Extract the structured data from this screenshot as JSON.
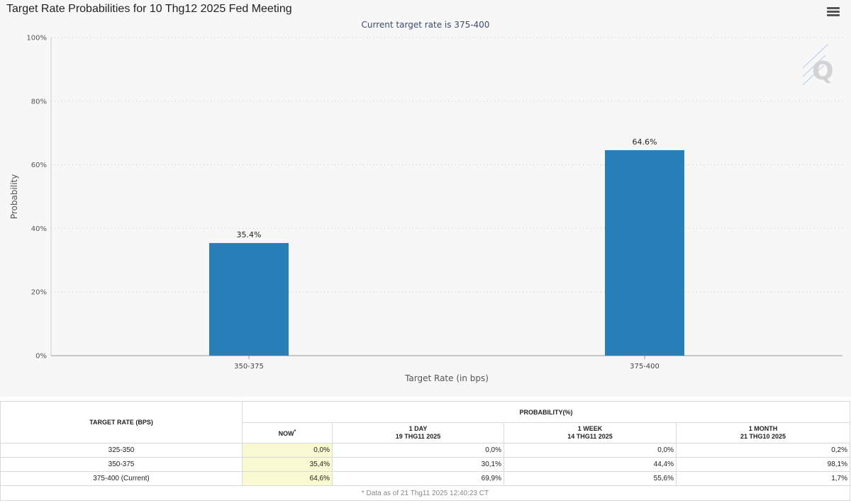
{
  "header": {
    "title": "Target Rate Probabilities for 10 Thg12 2025 Fed Meeting",
    "subtitle": "Current target rate is 375-400"
  },
  "chart_data": {
    "type": "bar",
    "title": "Target Rate Probabilities for 10 Thg12 2025 Fed Meeting",
    "subtitle": "Current target rate is 375-400",
    "categories": [
      "350-375",
      "375-400"
    ],
    "values": [
      35.4,
      64.6
    ],
    "data_labels": [
      "35.4%",
      "64.6%"
    ],
    "xlabel": "Target Rate (in bps)",
    "ylabel": "Probability",
    "ylim": [
      0,
      100
    ],
    "yticks": [
      0,
      20,
      40,
      60,
      80,
      100
    ],
    "ytick_labels": [
      "0%",
      "20%",
      "40%",
      "60%",
      "80%",
      "100%"
    ],
    "grid": true,
    "legend": "none",
    "bar_color": "#2980b9"
  },
  "table": {
    "rate_header": "TARGET RATE (BPS)",
    "prob_header": "PROBABILITY(%)",
    "columns": [
      {
        "label": "NOW",
        "sup": "*",
        "sub": ""
      },
      {
        "label": "1 DAY",
        "sub": "19 THG11 2025"
      },
      {
        "label": "1 WEEK",
        "sub": "14 THG11 2025"
      },
      {
        "label": "1 MONTH",
        "sub": "21 THG10 2025"
      }
    ],
    "rows": [
      {
        "rate": "325-350",
        "now": "0,0%",
        "day": "0,0%",
        "week": "0,0%",
        "month": "0,2%"
      },
      {
        "rate": "350-375",
        "now": "35,4%",
        "day": "30,1%",
        "week": "44,4%",
        "month": "98,1%"
      },
      {
        "rate": "375-400 (Current)",
        "now": "64,6%",
        "day": "69,9%",
        "week": "55,6%",
        "month": "1,7%"
      }
    ],
    "footnote": "* Data as of 21 Thg11 2025 12:40:23 CT"
  },
  "icons": {
    "menu": "hamburger-menu-icon",
    "watermark": "Q"
  },
  "colors": {
    "bar": "#2980b9",
    "now_highlight": "#fafad2",
    "panel_background": "#f7f7f7"
  }
}
